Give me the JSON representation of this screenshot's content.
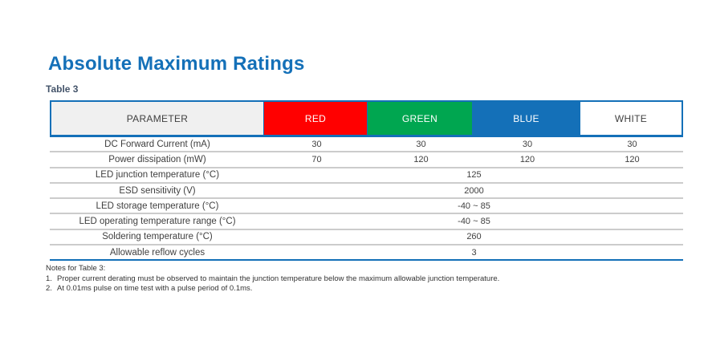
{
  "page": {
    "title": "Absolute Maximum Ratings",
    "table_label": "Table 3"
  },
  "table": {
    "header": {
      "parameter": "PARAMETER",
      "columns": [
        "RED",
        "GREEN",
        "BLUE",
        "WHITE"
      ]
    },
    "rows": [
      {
        "label": "DC Forward Current (mA)",
        "values": [
          "30",
          "30",
          "30",
          "30"
        ]
      },
      {
        "label": "Power dissipation (mW)",
        "values": [
          "70",
          "120",
          "120",
          "120"
        ]
      },
      {
        "label": "LED junction temperature (°C)",
        "merged": "125"
      },
      {
        "label": "ESD sensitivity (V)",
        "merged": "2000"
      },
      {
        "label": "LED storage temperature (°C)",
        "merged": "-40 ~ 85"
      },
      {
        "label": "LED operating temperature range (°C)",
        "merged": "-40 ~ 85"
      },
      {
        "label": "Soldering temperature (°C)",
        "merged": "260"
      },
      {
        "label": "Allowable reflow cycles",
        "merged": "3"
      }
    ]
  },
  "notes": {
    "heading": "Notes for Table 3:",
    "items": [
      {
        "num": "1.",
        "text": "Proper current derating must be observed to maintain the junction temperature below the maximum allowable junction temperature."
      },
      {
        "num": "2.",
        "text": "At 0.01ms pulse on time test with a pulse period of 0.1ms."
      }
    ]
  },
  "colors": {
    "accent_blue": "#1470b8",
    "red": "#ff0000",
    "green": "#00a650",
    "parameter_bg": "#f0f0f0",
    "row_separator": "#cccccc",
    "body_text": "#404040"
  }
}
